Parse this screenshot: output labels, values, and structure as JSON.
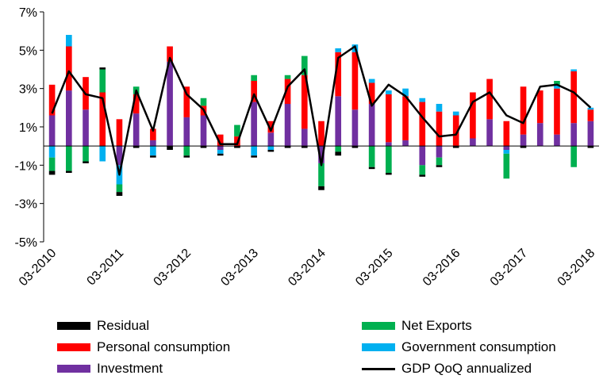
{
  "chart_data": {
    "type": "bar",
    "stacked": true,
    "title": "",
    "xlabel": "",
    "ylabel": "",
    "ylim": [
      -5,
      7
    ],
    "yticks": [
      -5,
      -3,
      -1,
      1,
      3,
      5,
      7
    ],
    "ytick_labels": [
      "-5%",
      "-3%",
      "-1%",
      "1%",
      "3%",
      "5%",
      "7%"
    ],
    "xtick_labels": [
      "03-2010",
      "03-2011",
      "03-2012",
      "03-2013",
      "03-2014",
      "03-2015",
      "03-2016",
      "03-2017",
      "03-2018"
    ],
    "xtick_every": 4,
    "categories": [
      "Q1-2010",
      "Q2-2010",
      "Q3-2010",
      "Q4-2010",
      "Q1-2011",
      "Q2-2011",
      "Q3-2011",
      "Q4-2011",
      "Q1-2012",
      "Q2-2012",
      "Q3-2012",
      "Q4-2012",
      "Q1-2013",
      "Q2-2013",
      "Q3-2013",
      "Q4-2013",
      "Q1-2014",
      "Q2-2014",
      "Q3-2014",
      "Q4-2014",
      "Q1-2015",
      "Q2-2015",
      "Q3-2015",
      "Q4-2015",
      "Q1-2016",
      "Q2-2016",
      "Q3-2016",
      "Q4-2016",
      "Q1-2017",
      "Q2-2017",
      "Q3-2017",
      "Q4-2017",
      "Q1-2018"
    ],
    "series": [
      {
        "name": "Investment",
        "color": "#7030A0",
        "values": [
          1.6,
          2.9,
          1.9,
          0.0,
          -1.0,
          1.7,
          0.3,
          4.4,
          1.5,
          1.6,
          -0.2,
          0.0,
          2.3,
          0.7,
          2.2,
          0.9,
          -0.9,
          2.6,
          1.9,
          2.2,
          0.2,
          0.3,
          -1.0,
          -0.6,
          0.0,
          0.4,
          1.4,
          -0.2,
          0.6,
          1.2,
          0.6,
          1.2,
          1.3
        ]
      },
      {
        "name": "Personal consumption",
        "color": "#FF0000",
        "values": [
          1.6,
          2.3,
          1.7,
          2.8,
          1.4,
          1.0,
          0.6,
          0.8,
          1.6,
          0.5,
          0.6,
          0.5,
          1.1,
          0.6,
          1.3,
          2.8,
          1.3,
          2.3,
          3.0,
          1.1,
          2.5,
          2.3,
          2.3,
          1.8,
          1.6,
          2.4,
          2.1,
          1.3,
          2.5,
          1.7,
          2.4,
          2.7,
          0.6
        ]
      },
      {
        "name": "Government consumption",
        "color": "#00B0F0",
        "values": [
          -0.6,
          0.6,
          0.0,
          -0.8,
          -1.0,
          0.0,
          -0.5,
          0.0,
          0.0,
          0.0,
          -0.2,
          0.0,
          -0.5,
          -0.2,
          0.0,
          0.0,
          0.0,
          0.2,
          0.4,
          0.2,
          0.2,
          0.4,
          0.2,
          0.4,
          0.2,
          0.0,
          0.0,
          -0.2,
          0.0,
          0.0,
          0.2,
          0.1,
          0.1
        ]
      },
      {
        "name": "Net Exports",
        "color": "#00B050",
        "values": [
          -0.7,
          -1.3,
          -0.8,
          1.2,
          -0.4,
          0.4,
          0.0,
          0.0,
          -0.5,
          0.4,
          0.0,
          0.6,
          0.3,
          0.0,
          0.2,
          1.0,
          -1.2,
          -0.3,
          0.0,
          -1.1,
          -1.4,
          0.0,
          -0.5,
          -0.4,
          0.0,
          0.0,
          0.0,
          -1.3,
          0.0,
          0.0,
          0.2,
          -1.1,
          0.0
        ]
      },
      {
        "name": "Residual",
        "color": "#000000",
        "values": [
          -0.2,
          -0.1,
          -0.1,
          0.1,
          -0.2,
          -0.1,
          -0.1,
          -0.2,
          -0.1,
          -0.1,
          -0.1,
          -0.1,
          -0.1,
          -0.1,
          -0.1,
          -0.1,
          -0.2,
          -0.2,
          -0.1,
          -0.1,
          -0.1,
          0.0,
          -0.1,
          -0.1,
          -0.1,
          0.0,
          0.0,
          0.0,
          -0.1,
          0.0,
          0.0,
          0.0,
          -0.1
        ]
      }
    ],
    "line": {
      "name": "GDP QoQ annualized",
      "color": "#000000",
      "values": [
        1.7,
        3.9,
        2.7,
        2.5,
        -1.5,
        2.9,
        0.8,
        4.6,
        2.7,
        1.9,
        0.1,
        0.1,
        2.7,
        0.8,
        3.1,
        4.0,
        -1.0,
        4.6,
        5.2,
        2.1,
        3.2,
        2.6,
        1.5,
        0.5,
        0.6,
        2.3,
        2.8,
        1.6,
        1.2,
        3.1,
        3.2,
        2.8,
        2.0
      ]
    },
    "legend": {
      "placement": "bottom",
      "order": [
        "Residual",
        "Net Exports",
        "Personal consumption",
        "Government consumption",
        "Investment",
        "GDP QoQ annualized"
      ]
    }
  }
}
